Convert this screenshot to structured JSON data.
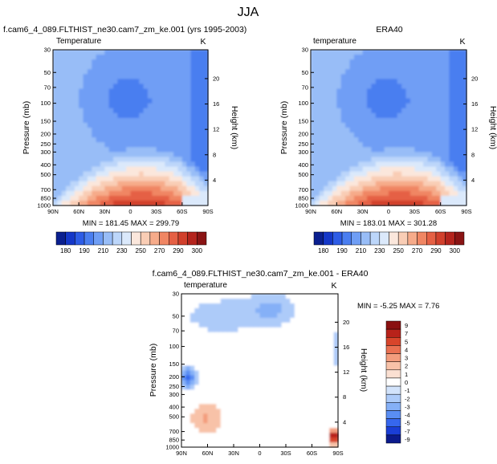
{
  "figure": {
    "title": "JJA"
  },
  "colors": {
    "abs_palette": [
      "#0a1f8f",
      "#1437c8",
      "#2d5ce6",
      "#4a7ef0",
      "#6f9ef5",
      "#98bdf7",
      "#bcd6fa",
      "#dbe9fb",
      "#fbe7dc",
      "#f9cdb5",
      "#f6ab8a",
      "#f08663",
      "#e56044",
      "#d1402c",
      "#b4241d",
      "#8a1414"
    ],
    "diff_palette": [
      "#0b1a8c",
      "#1a3ed6",
      "#3667ee",
      "#5a8ef3",
      "#85b0f7",
      "#adcbf9",
      "#d2e3fb",
      "#ffffff",
      "#fbe0d2",
      "#f8c2a8",
      "#f39d7d",
      "#ea7152",
      "#d8452b",
      "#b8221a",
      "#8a1010"
    ]
  },
  "chart_data": [
    {
      "type": "heatmap",
      "panel": "control",
      "case_title": "f.cam6_4_089.FLTHIST_ne30.cam7_zm_ke.001 (yrs 1995-2003)",
      "left_label": "Temperature",
      "right_unit": "K",
      "ylabel": "Pressure (mb)",
      "ylabel_right": "Height (km)",
      "x_ticks": [
        "90N",
        "60N",
        "30N",
        "0",
        "30S",
        "60S",
        "90S"
      ],
      "y_ticks": [
        "30",
        "50",
        "70",
        "100",
        "150",
        "200",
        "250",
        "300",
        "400",
        "500",
        "700",
        "850",
        "1000"
      ],
      "height_ticks": [
        "20",
        "16",
        "12",
        "8",
        "4"
      ],
      "stats": "MIN = 181.45  MAX = 299.79",
      "colorbar_labels": [
        "180",
        "190",
        "210",
        "230",
        "250",
        "270",
        "290",
        "300"
      ],
      "value_range": [
        180,
        300
      ]
    },
    {
      "type": "heatmap",
      "panel": "obs",
      "case_title": "ERA40",
      "left_label": "temperature",
      "right_unit": "K",
      "ylabel": "Pressure (mb)",
      "ylabel_right": "Height (km)",
      "x_ticks": [
        "90N",
        "60N",
        "30N",
        "0",
        "30S",
        "60S",
        "90S"
      ],
      "y_ticks": [
        "30",
        "50",
        "70",
        "100",
        "150",
        "200",
        "250",
        "300",
        "400",
        "500",
        "700",
        "850",
        "1000"
      ],
      "height_ticks": [
        "20",
        "16",
        "12",
        "8",
        "4"
      ],
      "stats": "MIN = 183.01  MAX = 301.28",
      "colorbar_labels": [
        "180",
        "190",
        "210",
        "230",
        "250",
        "270",
        "290",
        "300"
      ],
      "value_range": [
        180,
        300
      ]
    },
    {
      "type": "heatmap",
      "panel": "difference",
      "case_title": "f.cam6_4_089.FLTHIST_ne30.cam7_zm_ke.001 - ERA40",
      "left_label": "temperature",
      "right_unit": "K",
      "ylabel": "Pressure (mb)",
      "ylabel_right": "Height (km)",
      "x_ticks": [
        "90N",
        "60N",
        "30N",
        "0",
        "30S",
        "60S",
        "90S"
      ],
      "y_ticks": [
        "30",
        "50",
        "70",
        "100",
        "150",
        "200",
        "250",
        "300",
        "400",
        "500",
        "700",
        "850",
        "1000"
      ],
      "height_ticks": [
        "20",
        "16",
        "12",
        "8",
        "4"
      ],
      "stats": "MIN = -5.25  MAX =  7.76",
      "colorbar_labels": [
        "9",
        "7",
        "5",
        "4",
        "3",
        "2",
        "1",
        "0",
        "-1",
        "-2",
        "-3",
        "-4",
        "-5",
        "-7",
        "-9"
      ],
      "value_range": [
        -9,
        9
      ]
    }
  ]
}
